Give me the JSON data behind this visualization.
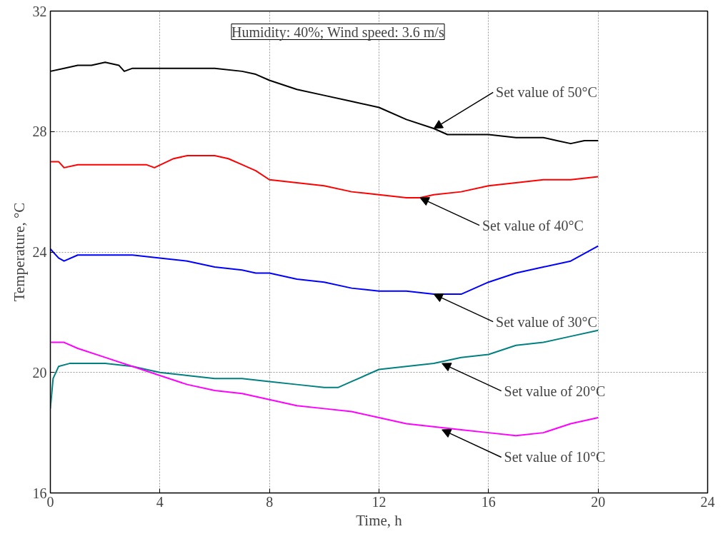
{
  "chart_data": {
    "type": "line",
    "title": "Humidity: 40%; Wind speed: 3.6 m/s",
    "xlabel": "Time, h",
    "ylabel": "Temperature, °C",
    "xlim": [
      0,
      24
    ],
    "xticks": [
      0,
      4,
      8,
      12,
      16,
      20,
      24
    ],
    "ylim": [
      16,
      32
    ],
    "yticks": [
      16,
      20,
      24,
      28,
      32
    ],
    "grid": true,
    "line_style": "solid",
    "marker": "none",
    "series": [
      {
        "color": "#000000",
        "x": [
          0,
          0.5,
          1,
          1.5,
          2,
          2.5,
          2.7,
          3,
          4,
          5,
          6,
          7,
          7.5,
          8,
          9,
          10,
          11,
          12,
          13,
          14,
          14.5,
          15,
          16,
          17,
          18,
          18.5,
          19,
          19.5,
          20
        ],
        "values": [
          30.0,
          30.1,
          30.2,
          30.2,
          30.3,
          30.2,
          30.0,
          30.1,
          30.1,
          30.1,
          30.1,
          30.0,
          29.9,
          29.7,
          29.4,
          29.2,
          29.0,
          28.8,
          28.4,
          28.1,
          27.9,
          27.9,
          27.9,
          27.8,
          27.8,
          27.7,
          27.6,
          27.7,
          27.7
        ]
      },
      {
        "color": "#ff0000",
        "x": [
          0,
          0.3,
          0.5,
          1,
          2,
          3,
          3.5,
          3.8,
          4.5,
          5,
          6,
          6.5,
          7,
          7.5,
          8,
          9,
          10,
          11,
          12,
          13,
          13.5,
          14,
          15,
          16,
          17,
          18,
          19,
          20
        ],
        "values": [
          27.0,
          27.0,
          26.8,
          26.9,
          26.9,
          26.9,
          26.9,
          26.8,
          27.1,
          27.2,
          27.2,
          27.1,
          26.9,
          26.7,
          26.4,
          26.3,
          26.2,
          26.0,
          25.9,
          25.8,
          25.8,
          25.9,
          26.0,
          26.2,
          26.3,
          26.4,
          26.4,
          26.5
        ]
      },
      {
        "color": "#0000ff",
        "x": [
          0,
          0.3,
          0.5,
          1,
          2,
          3,
          4,
          5,
          6,
          7,
          7.5,
          8,
          9,
          10,
          11,
          12,
          13,
          14,
          15,
          16,
          17,
          18,
          19,
          20
        ],
        "values": [
          24.1,
          23.8,
          23.7,
          23.9,
          23.9,
          23.9,
          23.8,
          23.7,
          23.5,
          23.4,
          23.3,
          23.3,
          23.1,
          23.0,
          22.8,
          22.7,
          22.7,
          22.6,
          22.6,
          23.0,
          23.3,
          23.5,
          23.7,
          24.2
        ]
      },
      {
        "color": "#008080",
        "x": [
          0,
          0.1,
          0.3,
          0.7,
          1,
          2,
          3,
          4,
          5,
          6,
          7,
          8,
          9,
          10,
          10.5,
          11,
          12,
          13,
          14,
          15,
          16,
          17,
          18,
          19,
          20
        ],
        "values": [
          18.8,
          19.8,
          20.2,
          20.3,
          20.3,
          20.3,
          20.2,
          20.0,
          19.9,
          19.8,
          19.8,
          19.7,
          19.6,
          19.5,
          19.5,
          19.7,
          20.1,
          20.2,
          20.3,
          20.5,
          20.6,
          20.9,
          21.0,
          21.2,
          21.4
        ]
      },
      {
        "color": "#ff00ff",
        "x": [
          0,
          0.5,
          1,
          2,
          3,
          4,
          5,
          6,
          7,
          8,
          9,
          10,
          11,
          12,
          13,
          14,
          15,
          16,
          17,
          18,
          19,
          20
        ],
        "values": [
          21.0,
          21.0,
          20.8,
          20.5,
          20.2,
          19.9,
          19.6,
          19.4,
          19.3,
          19.1,
          18.9,
          18.8,
          18.7,
          18.5,
          18.3,
          18.2,
          18.1,
          18.0,
          17.9,
          18.0,
          18.3,
          18.5
        ]
      }
    ],
    "annotations": [
      {
        "text": "Set value of 50°C",
        "x": 14,
        "y": 28.1
      },
      {
        "text": "Set value of 40°C",
        "x": 13.5,
        "y": 25.8
      },
      {
        "text": "Set value of 30°C",
        "x": 14,
        "y": 22.6
      },
      {
        "text": "Set value of 20°C",
        "x": 14.3,
        "y": 20.3
      },
      {
        "text": "Set value of 10°C",
        "x": 14.3,
        "y": 18.1
      }
    ]
  }
}
